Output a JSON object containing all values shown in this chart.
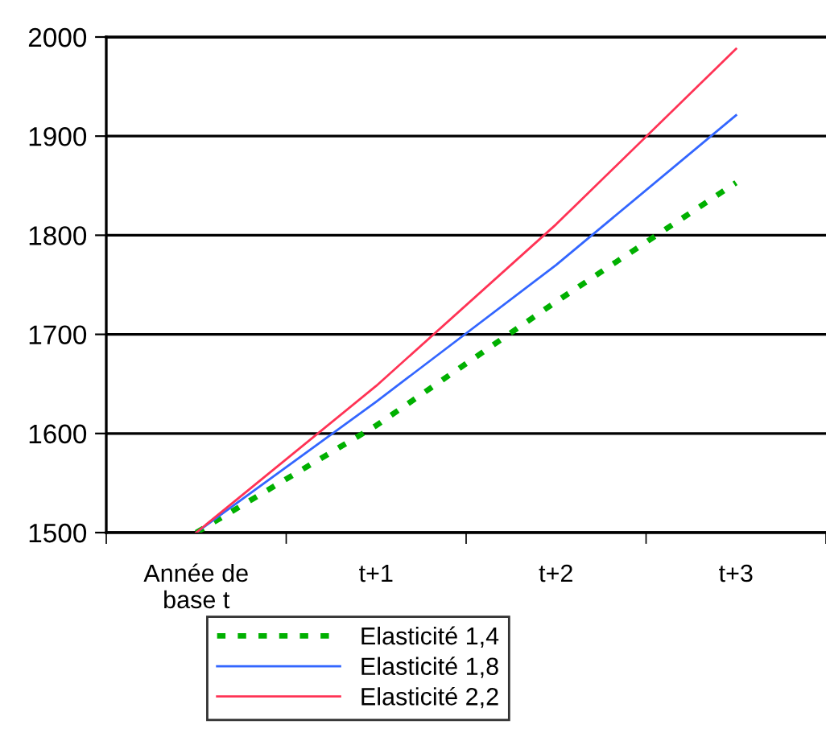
{
  "chart_data": {
    "type": "line",
    "categories": [
      "Année de\nbase t",
      "t+1",
      "t+2",
      "t+3"
    ],
    "series": [
      {
        "name": "Elasticité 1,4",
        "color": "#00b000",
        "values": [
          1500,
          1608,
          1733,
          1853
        ],
        "line_style": "dotted"
      },
      {
        "name": "Elasticité 1,8",
        "color": "#3366ff",
        "values": [
          1500,
          1632,
          1770,
          1921
        ],
        "line_style": "solid"
      },
      {
        "name": "Elasticité 2,2",
        "color": "#ff3355",
        "values": [
          1500,
          1648,
          1811,
          1988
        ],
        "line_style": "solid"
      }
    ],
    "ylim": [
      1500,
      2000
    ],
    "yticks": [
      1500,
      1600,
      1700,
      1800,
      1900,
      2000
    ],
    "grid": "y",
    "legend": "bottom"
  }
}
